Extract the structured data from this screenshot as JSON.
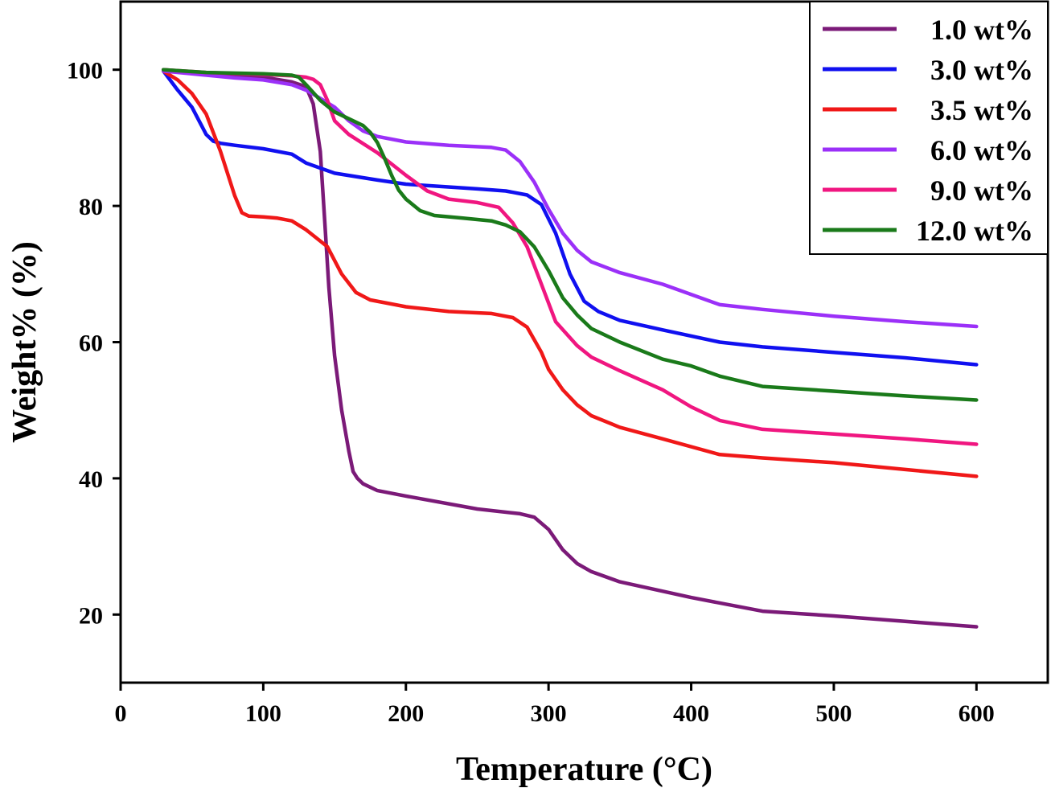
{
  "chart_data": {
    "type": "line",
    "xlabel": "Temperature (°C)",
    "ylabel": "Weight% (%)",
    "xlim": [
      0,
      650
    ],
    "ylim": [
      10,
      110
    ],
    "xticks": [
      0,
      100,
      200,
      300,
      400,
      500,
      600
    ],
    "yticks": [
      20,
      40,
      60,
      80,
      100
    ],
    "grid": false,
    "legend_position": "top-right",
    "series": [
      {
        "name": "1.0 wt%",
        "color": "#7B1A78",
        "x": [
          30,
          60,
          100,
          120,
          130,
          135,
          140,
          143,
          146,
          150,
          155,
          160,
          163,
          166,
          170,
          180,
          200,
          250,
          280,
          290,
          300,
          310,
          320,
          330,
          350,
          400,
          450,
          500,
          550,
          600
        ],
        "y": [
          100,
          99.5,
          98.9,
          98.2,
          97.5,
          95,
          88,
          78,
          68,
          58,
          50,
          44,
          41,
          40,
          39.2,
          38.2,
          37.4,
          35.5,
          34.8,
          34.3,
          32.5,
          29.5,
          27.5,
          26.3,
          24.8,
          22.5,
          20.5,
          19.8,
          19.0,
          18.2
        ]
      },
      {
        "name": "3.0 wt%",
        "color": "#1010F0",
        "x": [
          30,
          40,
          50,
          60,
          65,
          70,
          80,
          100,
          120,
          130,
          150,
          180,
          200,
          250,
          270,
          285,
          295,
          305,
          315,
          325,
          335,
          350,
          380,
          420,
          450,
          500,
          550,
          600
        ],
        "y": [
          99.8,
          97,
          94.5,
          90.5,
          89.5,
          89.2,
          88.9,
          88.4,
          87.6,
          86.3,
          84.8,
          83.8,
          83.2,
          82.5,
          82.2,
          81.6,
          80.2,
          76,
          70,
          66,
          64.5,
          63.2,
          61.8,
          60,
          59.3,
          58.5,
          57.7,
          56.7
        ]
      },
      {
        "name": "3.5 wt%",
        "color": "#F01818",
        "x": [
          30,
          40,
          50,
          60,
          70,
          80,
          85,
          90,
          100,
          110,
          120,
          130,
          145,
          155,
          165,
          175,
          200,
          230,
          260,
          275,
          285,
          295,
          300,
          310,
          320,
          330,
          350,
          380,
          420,
          450,
          500,
          550,
          600
        ],
        "y": [
          99.8,
          98.5,
          96.5,
          93.5,
          88,
          81.5,
          79,
          78.5,
          78.4,
          78.2,
          77.8,
          76.5,
          74,
          70,
          67.3,
          66.2,
          65.2,
          64.5,
          64.2,
          63.6,
          62.2,
          58.5,
          56,
          53,
          50.8,
          49.2,
          47.5,
          45.8,
          43.5,
          43,
          42.3,
          41.3,
          40.3
        ]
      },
      {
        "name": "6.0 wt%",
        "color": "#9B30F8",
        "x": [
          30,
          50,
          80,
          100,
          120,
          130,
          140,
          150,
          160,
          170,
          180,
          200,
          230,
          260,
          270,
          280,
          290,
          300,
          310,
          320,
          330,
          350,
          380,
          420,
          450,
          500,
          550,
          600
        ],
        "y": [
          99.8,
          99.4,
          98.8,
          98.5,
          97.8,
          97,
          95.8,
          94.5,
          92.5,
          91,
          90.2,
          89.4,
          88.9,
          88.6,
          88.2,
          86.5,
          83.5,
          79.5,
          76,
          73.5,
          71.8,
          70.2,
          68.5,
          65.5,
          64.8,
          63.8,
          63,
          62.3
        ]
      },
      {
        "name": "9.0 wt%",
        "color": "#F01680",
        "x": [
          30,
          60,
          100,
          120,
          130,
          135,
          140,
          145,
          150,
          160,
          180,
          200,
          215,
          230,
          250,
          265,
          275,
          285,
          295,
          305,
          320,
          330,
          350,
          380,
          400,
          420,
          450,
          500,
          550,
          600
        ],
        "y": [
          100,
          99.6,
          99.3,
          99.1,
          98.9,
          98.6,
          97.8,
          95.5,
          92.5,
          90.5,
          87.8,
          84.5,
          82.2,
          81,
          80.5,
          79.8,
          77.5,
          74,
          68.5,
          63,
          59.5,
          57.8,
          55.8,
          53,
          50.5,
          48.5,
          47.2,
          46.5,
          45.8,
          45
        ]
      },
      {
        "name": "12.0 wt%",
        "color": "#1A7A1A",
        "x": [
          30,
          60,
          100,
          120,
          125,
          130,
          140,
          150,
          160,
          170,
          175,
          180,
          185,
          190,
          195,
          200,
          210,
          220,
          240,
          260,
          270,
          280,
          290,
          300,
          310,
          320,
          330,
          350,
          380,
          400,
          420,
          450,
          500,
          550,
          600
        ],
        "y": [
          100,
          99.6,
          99.4,
          99.2,
          98.9,
          97.8,
          95.5,
          93.8,
          92.8,
          91.8,
          90.8,
          89.3,
          87,
          84.5,
          82.3,
          81,
          79.3,
          78.6,
          78.2,
          77.8,
          77.2,
          76.2,
          74,
          70.5,
          66.5,
          64,
          62,
          60,
          57.5,
          56.5,
          55,
          53.5,
          52.8,
          52.1,
          51.5
        ]
      }
    ]
  }
}
